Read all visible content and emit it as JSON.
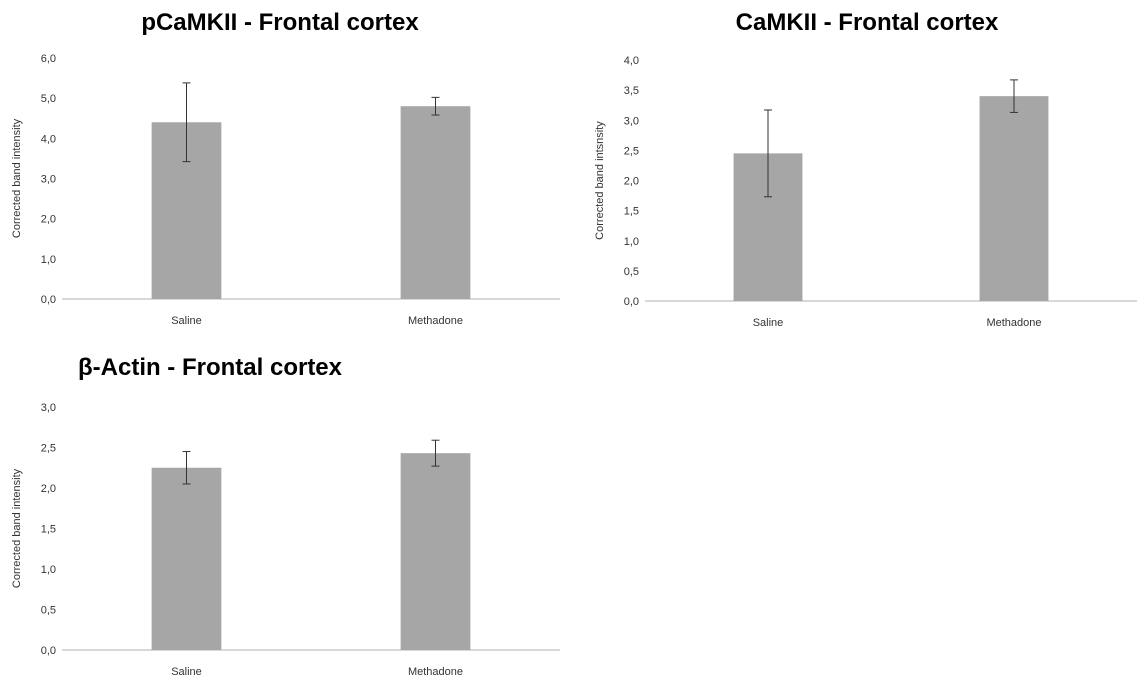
{
  "colors": {
    "bar": "#a6a6a6"
  },
  "chart_data": [
    {
      "type": "bar",
      "title": "pCaMKII - Frontal cortex",
      "categories": [
        "Saline",
        "Methadone"
      ],
      "values": [
        4.4,
        4.8
      ],
      "error": [
        0.98,
        0.22
      ],
      "ylabel": "Corrected band intensity",
      "xlabel": "",
      "ylim": [
        0,
        6
      ],
      "yticks": [
        "0,0",
        "1,0",
        "2,0",
        "3,0",
        "4,0",
        "5,0",
        "6,0"
      ],
      "grid": false,
      "legend": "none"
    },
    {
      "type": "bar",
      "title": "CaMKII - Frontal cortex",
      "categories": [
        "Saline",
        "Methadone"
      ],
      "values": [
        2.45,
        3.4
      ],
      "error": [
        0.72,
        0.27
      ],
      "ylabel": "Corrected band intsnsity",
      "xlabel": "",
      "ylim": [
        0,
        4
      ],
      "yticks": [
        "0,0",
        "0,5",
        "1,0",
        "1,5",
        "2,0",
        "2,5",
        "3,0",
        "3,5",
        "4,0"
      ],
      "grid": false,
      "legend": "none"
    },
    {
      "type": "bar",
      "title": "β-Actin - Frontal cortex",
      "categories": [
        "Saline",
        "Methadone"
      ],
      "values": [
        2.25,
        2.43
      ],
      "error": [
        0.2,
        0.16
      ],
      "ylabel": "Corrected band intensity",
      "xlabel": "",
      "ylim": [
        0,
        3
      ],
      "yticks": [
        "0,0",
        "0,5",
        "1,0",
        "1,5",
        "2,0",
        "2,5",
        "3,0"
      ],
      "grid": false,
      "legend": "none"
    }
  ]
}
